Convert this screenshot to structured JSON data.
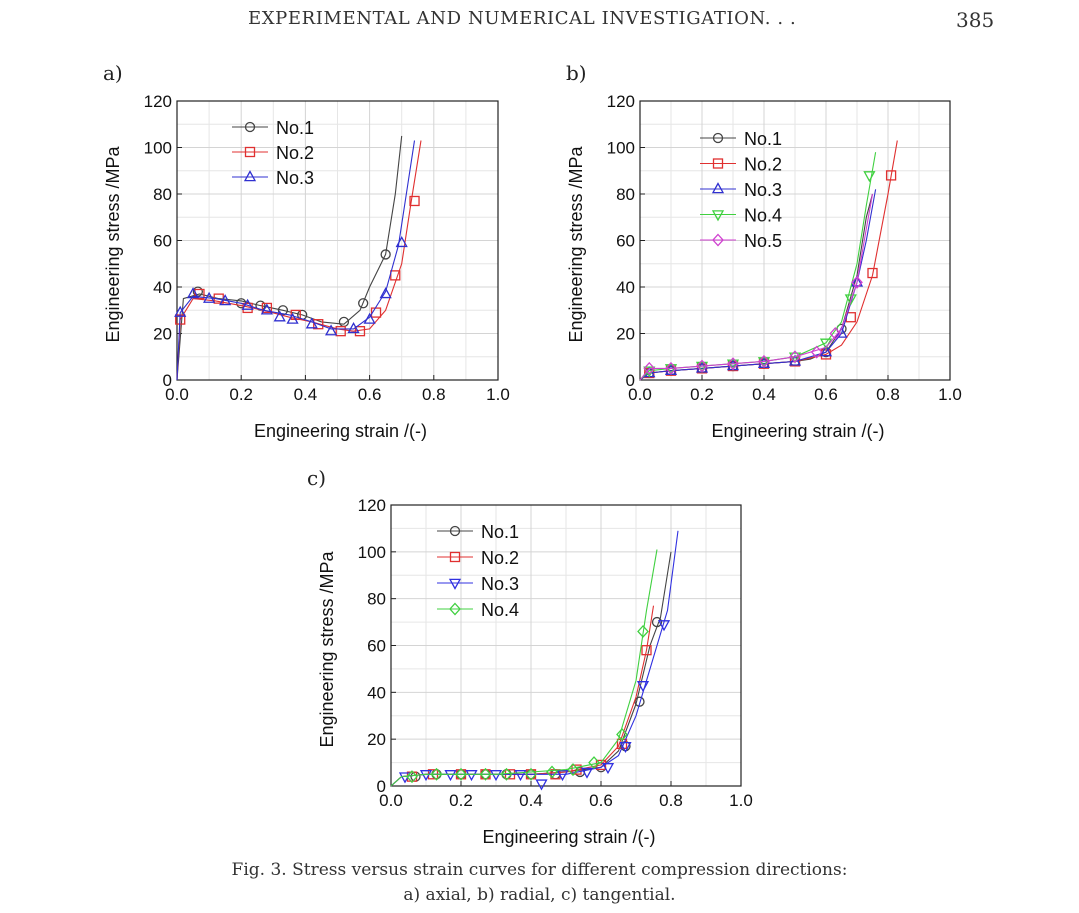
{
  "header": {
    "title": "EXPERIMENTAL AND NUMERICAL INVESTIGATION. . .",
    "page_number": "385"
  },
  "caption": {
    "line1": "Fig. 3. Stress versus strain curves for different compression directions:",
    "line2": "a) axial, b) radial, c) tangential."
  },
  "chart_data": [
    {
      "panel": "a)",
      "type": "line",
      "xlabel": "Engineering strain /(-)",
      "ylabel": "Engineering stress /MPa",
      "xlim": [
        0,
        1.0
      ],
      "ylim": [
        0,
        120
      ],
      "xticks": [
        "0.0",
        "0.2",
        "0.4",
        "0.6",
        "0.8",
        "1.0"
      ],
      "yticks": [
        "0",
        "20",
        "40",
        "60",
        "80",
        "100",
        "120"
      ],
      "grid": true,
      "legend": "top-left",
      "series": [
        {
          "name": "No.1",
          "color": "#444444",
          "marker": "circle",
          "x": [
            0,
            0.02,
            0.07,
            0.13,
            0.2,
            0.26,
            0.33,
            0.39,
            0.45,
            0.52,
            0.57,
            0.6,
            0.65,
            0.68,
            0.7
          ],
          "y": [
            0,
            35,
            37,
            35,
            34,
            32,
            30,
            28,
            25,
            24,
            30,
            40,
            54,
            80,
            105
          ],
          "marker_x": [
            0.065,
            0.2,
            0.26,
            0.33,
            0.39,
            0.52,
            0.58,
            0.65
          ],
          "marker_y": [
            38,
            33,
            32,
            30,
            28,
            25,
            33,
            54
          ]
        },
        {
          "name": "No.2",
          "color": "#e03030",
          "marker": "square",
          "x": [
            0,
            0.01,
            0.05,
            0.12,
            0.2,
            0.27,
            0.35,
            0.42,
            0.5,
            0.55,
            0.6,
            0.65,
            0.7,
            0.73,
            0.76
          ],
          "y": [
            0,
            26,
            35,
            34,
            32,
            30,
            27,
            25,
            22,
            21,
            22,
            30,
            50,
            77,
            103
          ],
          "marker_x": [
            0.01,
            0.07,
            0.13,
            0.22,
            0.28,
            0.37,
            0.44,
            0.51,
            0.57,
            0.62,
            0.68,
            0.74
          ],
          "marker_y": [
            26,
            37,
            35,
            31,
            31,
            28,
            24,
            21,
            21,
            29,
            45,
            77
          ]
        },
        {
          "name": "No.3",
          "color": "#3030d0",
          "marker": "triangle-up",
          "x": [
            0,
            0.01,
            0.05,
            0.12,
            0.2,
            0.27,
            0.35,
            0.42,
            0.48,
            0.55,
            0.6,
            0.65,
            0.69,
            0.72,
            0.74
          ],
          "y": [
            0,
            29,
            36,
            35,
            33,
            30,
            28,
            25,
            22,
            22,
            27,
            38,
            58,
            85,
            103
          ],
          "marker_x": [
            0.01,
            0.05,
            0.1,
            0.15,
            0.22,
            0.28,
            0.32,
            0.36,
            0.42,
            0.48,
            0.55,
            0.6,
            0.65,
            0.7
          ],
          "marker_y": [
            29,
            37,
            35,
            34,
            32,
            30,
            27,
            26,
            24,
            21,
            22,
            26,
            37,
            59
          ]
        }
      ]
    },
    {
      "panel": "b)",
      "type": "line",
      "xlabel": "Engineering strain /(-)",
      "ylabel": "Engineering stress /MPa",
      "xlim": [
        0,
        1.0
      ],
      "ylim": [
        0,
        120
      ],
      "xticks": [
        "0.0",
        "0.2",
        "0.4",
        "0.6",
        "0.8",
        "1.0"
      ],
      "yticks": [
        "0",
        "20",
        "40",
        "60",
        "80",
        "100",
        "120"
      ],
      "grid": true,
      "legend": "top-left",
      "series": [
        {
          "name": "No.1",
          "color": "#444444",
          "marker": "circle",
          "x": [
            0,
            0.03,
            0.1,
            0.2,
            0.3,
            0.4,
            0.5,
            0.55,
            0.6,
            0.65,
            0.7,
            0.73,
            0.75
          ],
          "y": [
            0,
            3,
            4,
            5,
            6,
            7,
            8,
            9,
            12,
            22,
            45,
            70,
            80
          ],
          "marker_x": [
            0.03,
            0.1,
            0.2,
            0.3,
            0.4,
            0.5,
            0.6,
            0.65
          ],
          "marker_y": [
            3,
            4,
            5,
            6,
            7,
            8,
            12,
            22
          ]
        },
        {
          "name": "No.2",
          "color": "#e03030",
          "marker": "square",
          "x": [
            0,
            0.03,
            0.1,
            0.2,
            0.3,
            0.4,
            0.5,
            0.6,
            0.65,
            0.7,
            0.75,
            0.8,
            0.83
          ],
          "y": [
            0,
            3,
            4,
            5,
            6,
            7,
            8,
            11,
            15,
            25,
            45,
            80,
            103
          ],
          "marker_x": [
            0.03,
            0.1,
            0.2,
            0.3,
            0.4,
            0.5,
            0.6,
            0.68,
            0.75,
            0.81
          ],
          "marker_y": [
            3,
            4,
            5,
            6,
            7,
            8,
            11,
            27,
            46,
            88
          ]
        },
        {
          "name": "No.3",
          "color": "#3030d0",
          "marker": "triangle-up",
          "x": [
            0,
            0.03,
            0.1,
            0.2,
            0.3,
            0.4,
            0.5,
            0.6,
            0.65,
            0.7,
            0.73,
            0.76
          ],
          "y": [
            0,
            3,
            4,
            5,
            6,
            7,
            8,
            12,
            20,
            42,
            60,
            82
          ],
          "marker_x": [
            0.03,
            0.1,
            0.2,
            0.3,
            0.4,
            0.5,
            0.6,
            0.65,
            0.7
          ],
          "marker_y": [
            3,
            4,
            5,
            6,
            7,
            8,
            12,
            20,
            42
          ]
        },
        {
          "name": "No.4",
          "color": "#40d040",
          "marker": "triangle-down",
          "x": [
            0,
            0.03,
            0.1,
            0.2,
            0.3,
            0.4,
            0.5,
            0.6,
            0.65,
            0.7,
            0.73,
            0.76
          ],
          "y": [
            0,
            4,
            5,
            6,
            7,
            8,
            10,
            16,
            25,
            50,
            75,
            98
          ],
          "marker_x": [
            0.03,
            0.1,
            0.2,
            0.3,
            0.4,
            0.5,
            0.6,
            0.68,
            0.74
          ],
          "marker_y": [
            4,
            5,
            6,
            7,
            8,
            10,
            16,
            35,
            88
          ]
        },
        {
          "name": "No.5",
          "color": "#d040d0",
          "marker": "diamond",
          "x": [
            0,
            0.03,
            0.1,
            0.2,
            0.3,
            0.4,
            0.5,
            0.6,
            0.65,
            0.7,
            0.73,
            0.75
          ],
          "y": [
            0,
            5,
            5,
            6,
            7,
            8,
            10,
            14,
            22,
            42,
            65,
            80
          ],
          "marker_x": [
            0.03,
            0.1,
            0.2,
            0.3,
            0.4,
            0.5,
            0.57,
            0.63,
            0.7
          ],
          "marker_y": [
            5,
            5,
            6,
            7,
            8,
            10,
            12,
            20,
            42
          ]
        }
      ]
    },
    {
      "panel": "c)",
      "type": "line",
      "xlabel": "Engineering strain /(-)",
      "ylabel": "Engineering stress /MPa",
      "xlim": [
        0,
        1.0
      ],
      "ylim": [
        0,
        120
      ],
      "xticks": [
        "0.0",
        "0.2",
        "0.4",
        "0.6",
        "0.8",
        "1.0"
      ],
      "yticks": [
        "0",
        "20",
        "40",
        "60",
        "80",
        "100",
        "120"
      ],
      "grid": true,
      "legend": "top-left",
      "series": [
        {
          "name": "No.1",
          "color": "#444444",
          "marker": "circle",
          "x": [
            0,
            0.03,
            0.1,
            0.2,
            0.3,
            0.4,
            0.5,
            0.6,
            0.65,
            0.7,
            0.74,
            0.77,
            0.8
          ],
          "y": [
            0,
            4,
            5,
            5,
            5,
            5,
            6,
            8,
            15,
            35,
            60,
            72,
            100
          ],
          "marker_x": [
            0.07,
            0.13,
            0.2,
            0.27,
            0.33,
            0.4,
            0.47,
            0.54,
            0.6,
            0.67,
            0.71,
            0.76
          ],
          "marker_y": [
            4,
            5,
            5,
            5,
            5,
            5,
            5,
            6,
            8,
            17,
            36,
            70
          ]
        },
        {
          "name": "No.2",
          "color": "#e03030",
          "marker": "square",
          "x": [
            0,
            0.03,
            0.1,
            0.2,
            0.3,
            0.4,
            0.5,
            0.6,
            0.65,
            0.7,
            0.73,
            0.75
          ],
          "y": [
            0,
            4,
            5,
            5,
            5,
            5,
            6,
            9,
            17,
            38,
            58,
            77
          ],
          "marker_x": [
            0.06,
            0.12,
            0.2,
            0.27,
            0.34,
            0.4,
            0.47,
            0.53,
            0.6,
            0.66,
            0.73
          ],
          "marker_y": [
            4,
            5,
            5,
            5,
            5,
            5,
            5,
            7,
            9,
            18,
            58
          ]
        },
        {
          "name": "No.3",
          "color": "#3030e0",
          "marker": "triangle-down",
          "x": [
            0,
            0.03,
            0.1,
            0.2,
            0.3,
            0.4,
            0.5,
            0.6,
            0.65,
            0.7,
            0.75,
            0.79,
            0.82
          ],
          "y": [
            0,
            4,
            5,
            5,
            5,
            5,
            5,
            8,
            13,
            30,
            55,
            75,
            109
          ],
          "marker_x": [
            0.04,
            0.1,
            0.17,
            0.23,
            0.3,
            0.37,
            0.43,
            0.49,
            0.56,
            0.62,
            0.67,
            0.72,
            0.78
          ],
          "marker_y": [
            4,
            5,
            5,
            5,
            5,
            5,
            1,
            5,
            6,
            8,
            17,
            43,
            69
          ]
        },
        {
          "name": "No.4",
          "color": "#40d040",
          "marker": "diamond",
          "x": [
            0,
            0.03,
            0.1,
            0.2,
            0.3,
            0.4,
            0.5,
            0.6,
            0.65,
            0.7,
            0.73,
            0.76
          ],
          "y": [
            0,
            4,
            5,
            5,
            5,
            6,
            7,
            10,
            20,
            45,
            75,
            101
          ],
          "marker_x": [
            0.06,
            0.13,
            0.2,
            0.27,
            0.33,
            0.4,
            0.46,
            0.52,
            0.58,
            0.66,
            0.72
          ],
          "marker_y": [
            4,
            5,
            5,
            5,
            5,
            5,
            6,
            7,
            10,
            22,
            66
          ]
        }
      ]
    }
  ]
}
